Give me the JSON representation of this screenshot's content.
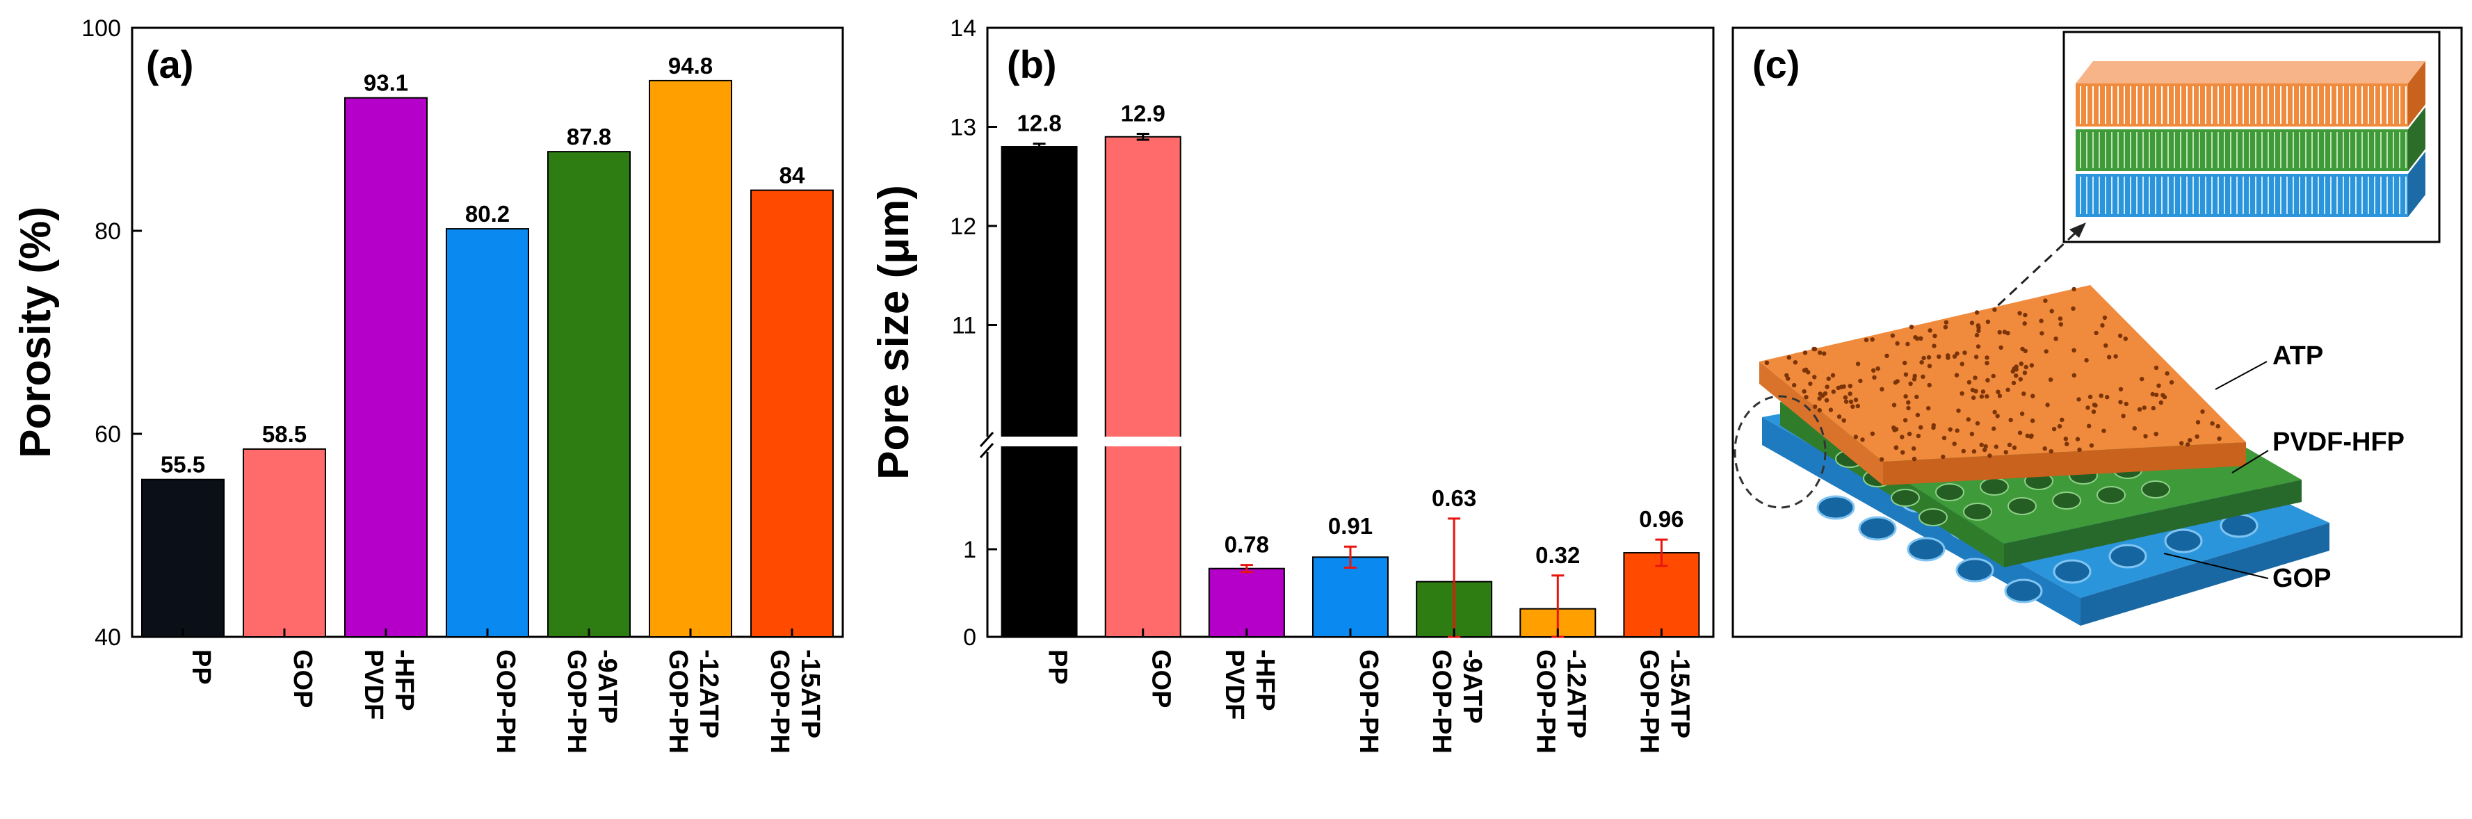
{
  "chart_data": [
    {
      "panel": "(a)",
      "type": "bar",
      "ylabel": "Porosity (%)",
      "ylim": [
        40,
        100
      ],
      "yticks": [
        40,
        60,
        80,
        100
      ],
      "categories": [
        [
          "PP"
        ],
        [
          "GOP"
        ],
        [
          "PVDF",
          "-HFP"
        ],
        [
          "GOP-PH"
        ],
        [
          "GOP-PH",
          "-9ATP"
        ],
        [
          "GOP-PH",
          "-12ATP"
        ],
        [
          "GOP-PH",
          "-15ATP"
        ]
      ],
      "values": [
        55.5,
        58.5,
        93.1,
        80.2,
        87.8,
        94.8,
        84
      ],
      "labels": [
        "55.5",
        "58.5",
        "93.1",
        "80.2",
        "87.8",
        "94.8",
        "84"
      ],
      "colors": [
        "#0b0f17",
        "#ff6b6b",
        "#b400c8",
        "#0a8af0",
        "#2e7d12",
        "#ffa000",
        "#ff4a00"
      ]
    },
    {
      "panel": "(b)",
      "type": "bar",
      "ylabel": "Pore size (μm)",
      "broken_axis": true,
      "lower_ylim": [
        0,
        2
      ],
      "lower_yticks": [
        0,
        1
      ],
      "upper_ylim": [
        10,
        14
      ],
      "upper_yticks": [
        11,
        12,
        13,
        14
      ],
      "categories": [
        [
          "PP"
        ],
        [
          "GOP"
        ],
        [
          "PVDF",
          "-HFP"
        ],
        [
          "GOP-PH"
        ],
        [
          "GOP-PH",
          "-9ATP"
        ],
        [
          "GOP-PH",
          "-12ATP"
        ],
        [
          "GOP-PH",
          "-15ATP"
        ]
      ],
      "values": [
        12.8,
        12.9,
        0.78,
        0.91,
        0.63,
        0.32,
        0.96
      ],
      "errors": [
        0.03,
        0.03,
        0.04,
        0.12,
        0.72,
        0.38,
        0.15
      ],
      "labels": [
        "12.8",
        "12.9",
        "0.78",
        "0.91",
        "0.63",
        "0.32",
        "0.96"
      ],
      "colors": [
        "#000000",
        "#ff6b6b",
        "#b400c8",
        "#0a8af0",
        "#2e7d12",
        "#ffa000",
        "#ff4a00"
      ]
    }
  ],
  "diagram": {
    "panel": "(c)",
    "layers": [
      "ATP",
      "PVDF-HFP",
      "GOP"
    ],
    "layer_colors": {
      "ATP": "#f08a3c",
      "PVDF-HFP": "#3f9a3a",
      "GOP": "#2b95dc"
    }
  }
}
